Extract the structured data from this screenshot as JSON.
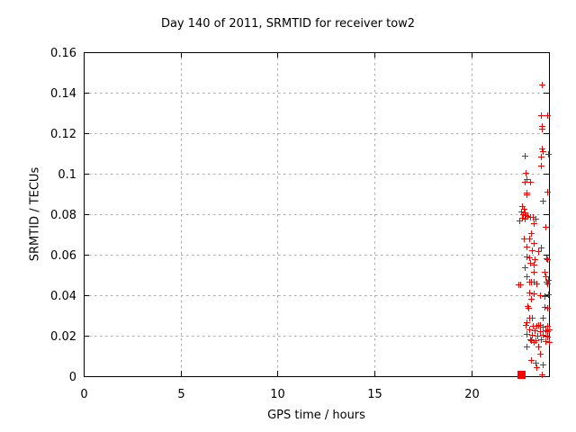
{
  "chart_data": {
    "type": "scatter",
    "title": "Day 140 of 2011, SRMTID for receiver tow2",
    "xlabel": "GPS time / hours",
    "ylabel": "SRMTID / TECUs",
    "xlim": [
      0,
      24
    ],
    "ylim": [
      0,
      0.16
    ],
    "x_ticks": {
      "values": [
        0,
        5,
        10,
        15,
        20
      ],
      "labels": [
        "0",
        "5",
        "10",
        "15",
        "20"
      ]
    },
    "y_ticks": {
      "values": [
        0,
        0.02,
        0.04,
        0.06,
        0.08,
        0.1,
        0.12,
        0.14,
        0.16
      ],
      "labels": [
        "0",
        "0.02",
        "0.04",
        "0.06",
        "0.08",
        "0.1",
        "0.12",
        "0.14",
        "0.16"
      ]
    },
    "grid": {
      "shown": true,
      "style": "dashed",
      "color": "#aaaaaa"
    },
    "legend": {
      "shown": false
    },
    "border_color": "#000000",
    "series": [
      {
        "marker": "plus",
        "color": "#ff0000",
        "points": [
          [
            23.65,
            0.1438
          ],
          [
            23.6,
            0.1291
          ],
          [
            23.92,
            0.1291
          ],
          [
            23.65,
            0.1236
          ],
          [
            23.65,
            0.1222
          ],
          [
            23.62,
            0.1124
          ],
          [
            23.68,
            0.1112
          ],
          [
            22.76,
            0.1088
          ],
          [
            23.56,
            0.1083
          ],
          [
            23.96,
            0.1097
          ],
          [
            23.56,
            0.104
          ],
          [
            22.79,
            0.1003
          ],
          [
            22.83,
            0.0972
          ],
          [
            23.03,
            0.0961
          ],
          [
            22.76,
            0.0958
          ],
          [
            22.83,
            0.0907
          ],
          [
            22.86,
            0.0896
          ],
          [
            23.9,
            0.0911
          ],
          [
            23.68,
            0.0866
          ],
          [
            23.9,
            0.0576
          ],
          [
            22.6,
            0.084
          ],
          [
            22.7,
            0.0827
          ],
          [
            22.56,
            0.0813
          ],
          [
            22.74,
            0.0809
          ],
          [
            22.65,
            0.08
          ],
          [
            22.79,
            0.0796
          ],
          [
            22.88,
            0.0791
          ],
          [
            23.02,
            0.0787
          ],
          [
            22.6,
            0.0782
          ],
          [
            22.74,
            0.0778
          ],
          [
            22.47,
            0.0769
          ],
          [
            23.16,
            0.0787
          ],
          [
            23.3,
            0.0778
          ],
          [
            23.19,
            0.0756
          ],
          [
            23.8,
            0.0738
          ],
          [
            23.06,
            0.0707
          ],
          [
            22.68,
            0.068
          ],
          [
            22.98,
            0.068
          ],
          [
            23.22,
            0.0658
          ],
          [
            23.56,
            0.0634
          ],
          [
            22.83,
            0.0639
          ],
          [
            23.14,
            0.0621
          ],
          [
            23.45,
            0.0618
          ],
          [
            22.85,
            0.059
          ],
          [
            23.0,
            0.0585
          ],
          [
            23.28,
            0.058
          ],
          [
            23.84,
            0.0584
          ],
          [
            23.03,
            0.0559
          ],
          [
            23.19,
            0.055
          ],
          [
            22.75,
            0.0539
          ],
          [
            23.22,
            0.0517
          ],
          [
            23.78,
            0.0515
          ],
          [
            23.8,
            0.0492
          ],
          [
            22.83,
            0.0495
          ],
          [
            23.06,
            0.0465
          ],
          [
            22.52,
            0.0455
          ],
          [
            23.37,
            0.0458
          ],
          [
            23.91,
            0.0458
          ],
          [
            22.44,
            0.0453
          ],
          [
            22.98,
            0.0468
          ],
          [
            23.22,
            0.0468
          ],
          [
            23.84,
            0.0465
          ],
          [
            23.96,
            0.0476
          ],
          [
            22.98,
            0.0413
          ],
          [
            23.22,
            0.0409
          ],
          [
            23.53,
            0.0399
          ],
          [
            23.76,
            0.0394
          ],
          [
            23.96,
            0.0403
          ],
          [
            23.06,
            0.0384
          ],
          [
            22.9,
            0.0347
          ],
          [
            22.93,
            0.034
          ],
          [
            23.76,
            0.0344
          ],
          [
            23.91,
            0.0339
          ],
          [
            22.98,
            0.0288
          ],
          [
            23.14,
            0.0288
          ],
          [
            23.68,
            0.029
          ],
          [
            22.83,
            0.0265
          ],
          [
            23.37,
            0.025
          ],
          [
            23.53,
            0.0255
          ],
          [
            22.79,
            0.0253
          ],
          [
            23.16,
            0.0249
          ],
          [
            23.44,
            0.0253
          ],
          [
            23.67,
            0.0244
          ],
          [
            23.9,
            0.0249
          ],
          [
            22.97,
            0.0231
          ],
          [
            23.25,
            0.0227
          ],
          [
            23.53,
            0.0222
          ],
          [
            23.81,
            0.0227
          ],
          [
            23.98,
            0.0231
          ],
          [
            22.83,
            0.0209
          ],
          [
            23.11,
            0.0204
          ],
          [
            23.39,
            0.02
          ],
          [
            23.67,
            0.0204
          ],
          [
            23.9,
            0.0196
          ],
          [
            23.02,
            0.0182
          ],
          [
            23.3,
            0.0178
          ],
          [
            23.58,
            0.0182
          ],
          [
            23.81,
            0.0173
          ],
          [
            23.98,
            0.0169
          ],
          [
            23.91,
            0.0224
          ],
          [
            23.06,
            0.0177
          ],
          [
            22.83,
            0.0147
          ],
          [
            23.22,
            0.0169
          ],
          [
            23.45,
            0.0147
          ],
          [
            23.53,
            0.011
          ],
          [
            23.06,
            0.008
          ],
          [
            23.3,
            0.0065
          ],
          [
            23.68,
            0.0058
          ],
          [
            23.37,
            0.0043
          ],
          [
            23.64,
            0.001
          ]
        ]
      },
      {
        "marker": "square",
        "color": "#ff0000",
        "points": [
          [
            22.56,
            0.0008
          ]
        ]
      }
    ]
  }
}
